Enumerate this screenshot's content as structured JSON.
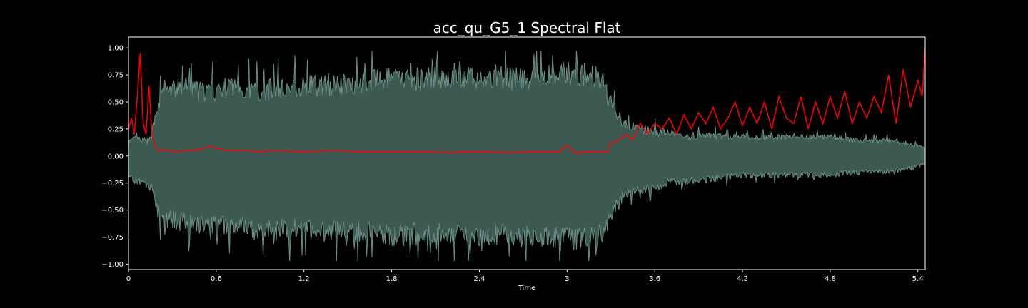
{
  "chart_data": {
    "type": "area",
    "title": "acc_qu_G5_1 Spectral Flat",
    "xlabel": "Time",
    "ylabel": "",
    "xlim": [
      0,
      5.45
    ],
    "ylim": [
      -1.05,
      1.1
    ],
    "x_ticks": [
      0,
      0.6,
      1.2,
      1.8,
      2.4,
      3.0,
      3.6,
      4.2,
      4.8,
      5.4
    ],
    "x_tick_labels": [
      "0",
      "0.6",
      "1.2",
      "1.8",
      "2.4",
      "3",
      "3.6",
      "4.2",
      "4.8",
      "5.4"
    ],
    "y_ticks": [
      -1.0,
      -0.75,
      -0.5,
      -0.25,
      0.0,
      0.25,
      0.5,
      0.75,
      1.0
    ],
    "y_tick_labels": [
      "−1.00",
      "−0.75",
      "−0.50",
      "−0.25",
      "0.00",
      "0.25",
      "0.50",
      "0.75",
      "1.00"
    ],
    "grid": false,
    "background": "#000000",
    "series": [
      {
        "kind": "waveform-envelope",
        "color": "#3d5a52",
        "edge_color": "#6a8f86",
        "x": [
          0,
          0.05,
          0.1,
          0.15,
          0.18,
          0.2,
          0.25,
          0.3,
          0.4,
          0.5,
          0.6,
          0.7,
          0.8,
          0.9,
          1.0,
          1.2,
          1.4,
          1.6,
          1.8,
          2.0,
          2.2,
          2.4,
          2.6,
          2.8,
          3.0,
          3.1,
          3.2,
          3.25,
          3.3,
          3.35,
          3.4,
          3.5,
          3.6,
          3.7,
          3.8,
          4.0,
          4.2,
          4.4,
          4.6,
          4.8,
          5.0,
          5.2,
          5.3,
          5.4,
          5.45
        ],
        "upper": [
          0.1,
          0.12,
          0.1,
          0.1,
          0.3,
          0.4,
          0.5,
          0.52,
          0.55,
          0.5,
          0.5,
          0.55,
          0.52,
          0.5,
          0.52,
          0.55,
          0.55,
          0.58,
          0.6,
          0.6,
          0.62,
          0.6,
          0.6,
          0.62,
          0.65,
          0.65,
          0.62,
          0.55,
          0.4,
          0.3,
          0.25,
          0.2,
          0.18,
          0.18,
          0.15,
          0.15,
          0.15,
          0.15,
          0.15,
          0.15,
          0.12,
          0.12,
          0.1,
          0.08,
          0.06
        ],
        "lower": [
          -0.15,
          -0.2,
          -0.2,
          -0.25,
          -0.3,
          -0.45,
          -0.5,
          -0.5,
          -0.52,
          -0.55,
          -0.55,
          -0.55,
          -0.55,
          -0.58,
          -0.58,
          -0.58,
          -0.6,
          -0.6,
          -0.62,
          -0.62,
          -0.62,
          -0.62,
          -0.62,
          -0.65,
          -0.65,
          -0.65,
          -0.62,
          -0.6,
          -0.5,
          -0.35,
          -0.3,
          -0.25,
          -0.25,
          -0.2,
          -0.2,
          -0.18,
          -0.15,
          -0.15,
          -0.15,
          -0.15,
          -0.12,
          -0.12,
          -0.1,
          -0.08,
          -0.06
        ],
        "peaks_upper": [
          0.68,
          0.72,
          0.8,
          0.78,
          0.85,
          0.82,
          0.8,
          0.78,
          0.95,
          0.85,
          0.95,
          0.88,
          0.6
        ],
        "peaks_lower": [
          -0.72,
          -0.8,
          -0.85,
          -0.82,
          -0.85,
          -0.8,
          -0.9,
          -0.95,
          -0.92,
          -0.95,
          -0.6,
          -0.45,
          -0.33
        ]
      },
      {
        "kind": "line",
        "color": "#ff0000",
        "x": [
          0,
          0.02,
          0.04,
          0.06,
          0.08,
          0.1,
          0.12,
          0.14,
          0.16,
          0.18,
          0.2,
          0.25,
          0.3,
          0.4,
          0.5,
          0.55,
          0.6,
          0.7,
          0.8,
          0.9,
          1.0,
          1.2,
          1.4,
          1.6,
          1.8,
          2.0,
          2.2,
          2.4,
          2.6,
          2.8,
          2.95,
          3.0,
          3.05,
          3.1,
          3.2,
          3.28,
          3.3,
          3.35,
          3.4,
          3.45,
          3.5,
          3.55,
          3.6,
          3.65,
          3.7,
          3.75,
          3.8,
          3.85,
          3.9,
          3.95,
          4.0,
          4.05,
          4.1,
          4.15,
          4.2,
          4.25,
          4.3,
          4.35,
          4.4,
          4.45,
          4.5,
          4.55,
          4.6,
          4.65,
          4.7,
          4.75,
          4.8,
          4.85,
          4.9,
          4.95,
          5.0,
          5.05,
          5.1,
          5.15,
          5.2,
          5.25,
          5.3,
          5.35,
          5.4,
          5.43,
          5.45
        ],
        "y": [
          0.25,
          0.35,
          0.2,
          0.55,
          0.95,
          0.3,
          0.2,
          0.65,
          0.2,
          0.1,
          0.05,
          0.06,
          0.04,
          0.05,
          0.06,
          0.09,
          0.07,
          0.05,
          0.05,
          0.04,
          0.05,
          0.04,
          0.05,
          0.04,
          0.04,
          0.04,
          0.03,
          0.04,
          0.03,
          0.04,
          0.04,
          0.1,
          0.03,
          0.03,
          0.04,
          0.04,
          0.12,
          0.14,
          0.2,
          0.15,
          0.3,
          0.2,
          0.3,
          0.25,
          0.35,
          0.2,
          0.38,
          0.25,
          0.4,
          0.3,
          0.45,
          0.25,
          0.35,
          0.5,
          0.28,
          0.45,
          0.3,
          0.5,
          0.25,
          0.55,
          0.35,
          0.3,
          0.55,
          0.25,
          0.5,
          0.3,
          0.55,
          0.35,
          0.6,
          0.3,
          0.5,
          0.35,
          0.55,
          0.4,
          0.75,
          0.3,
          0.8,
          0.45,
          0.7,
          0.55,
          1.0
        ]
      }
    ]
  }
}
